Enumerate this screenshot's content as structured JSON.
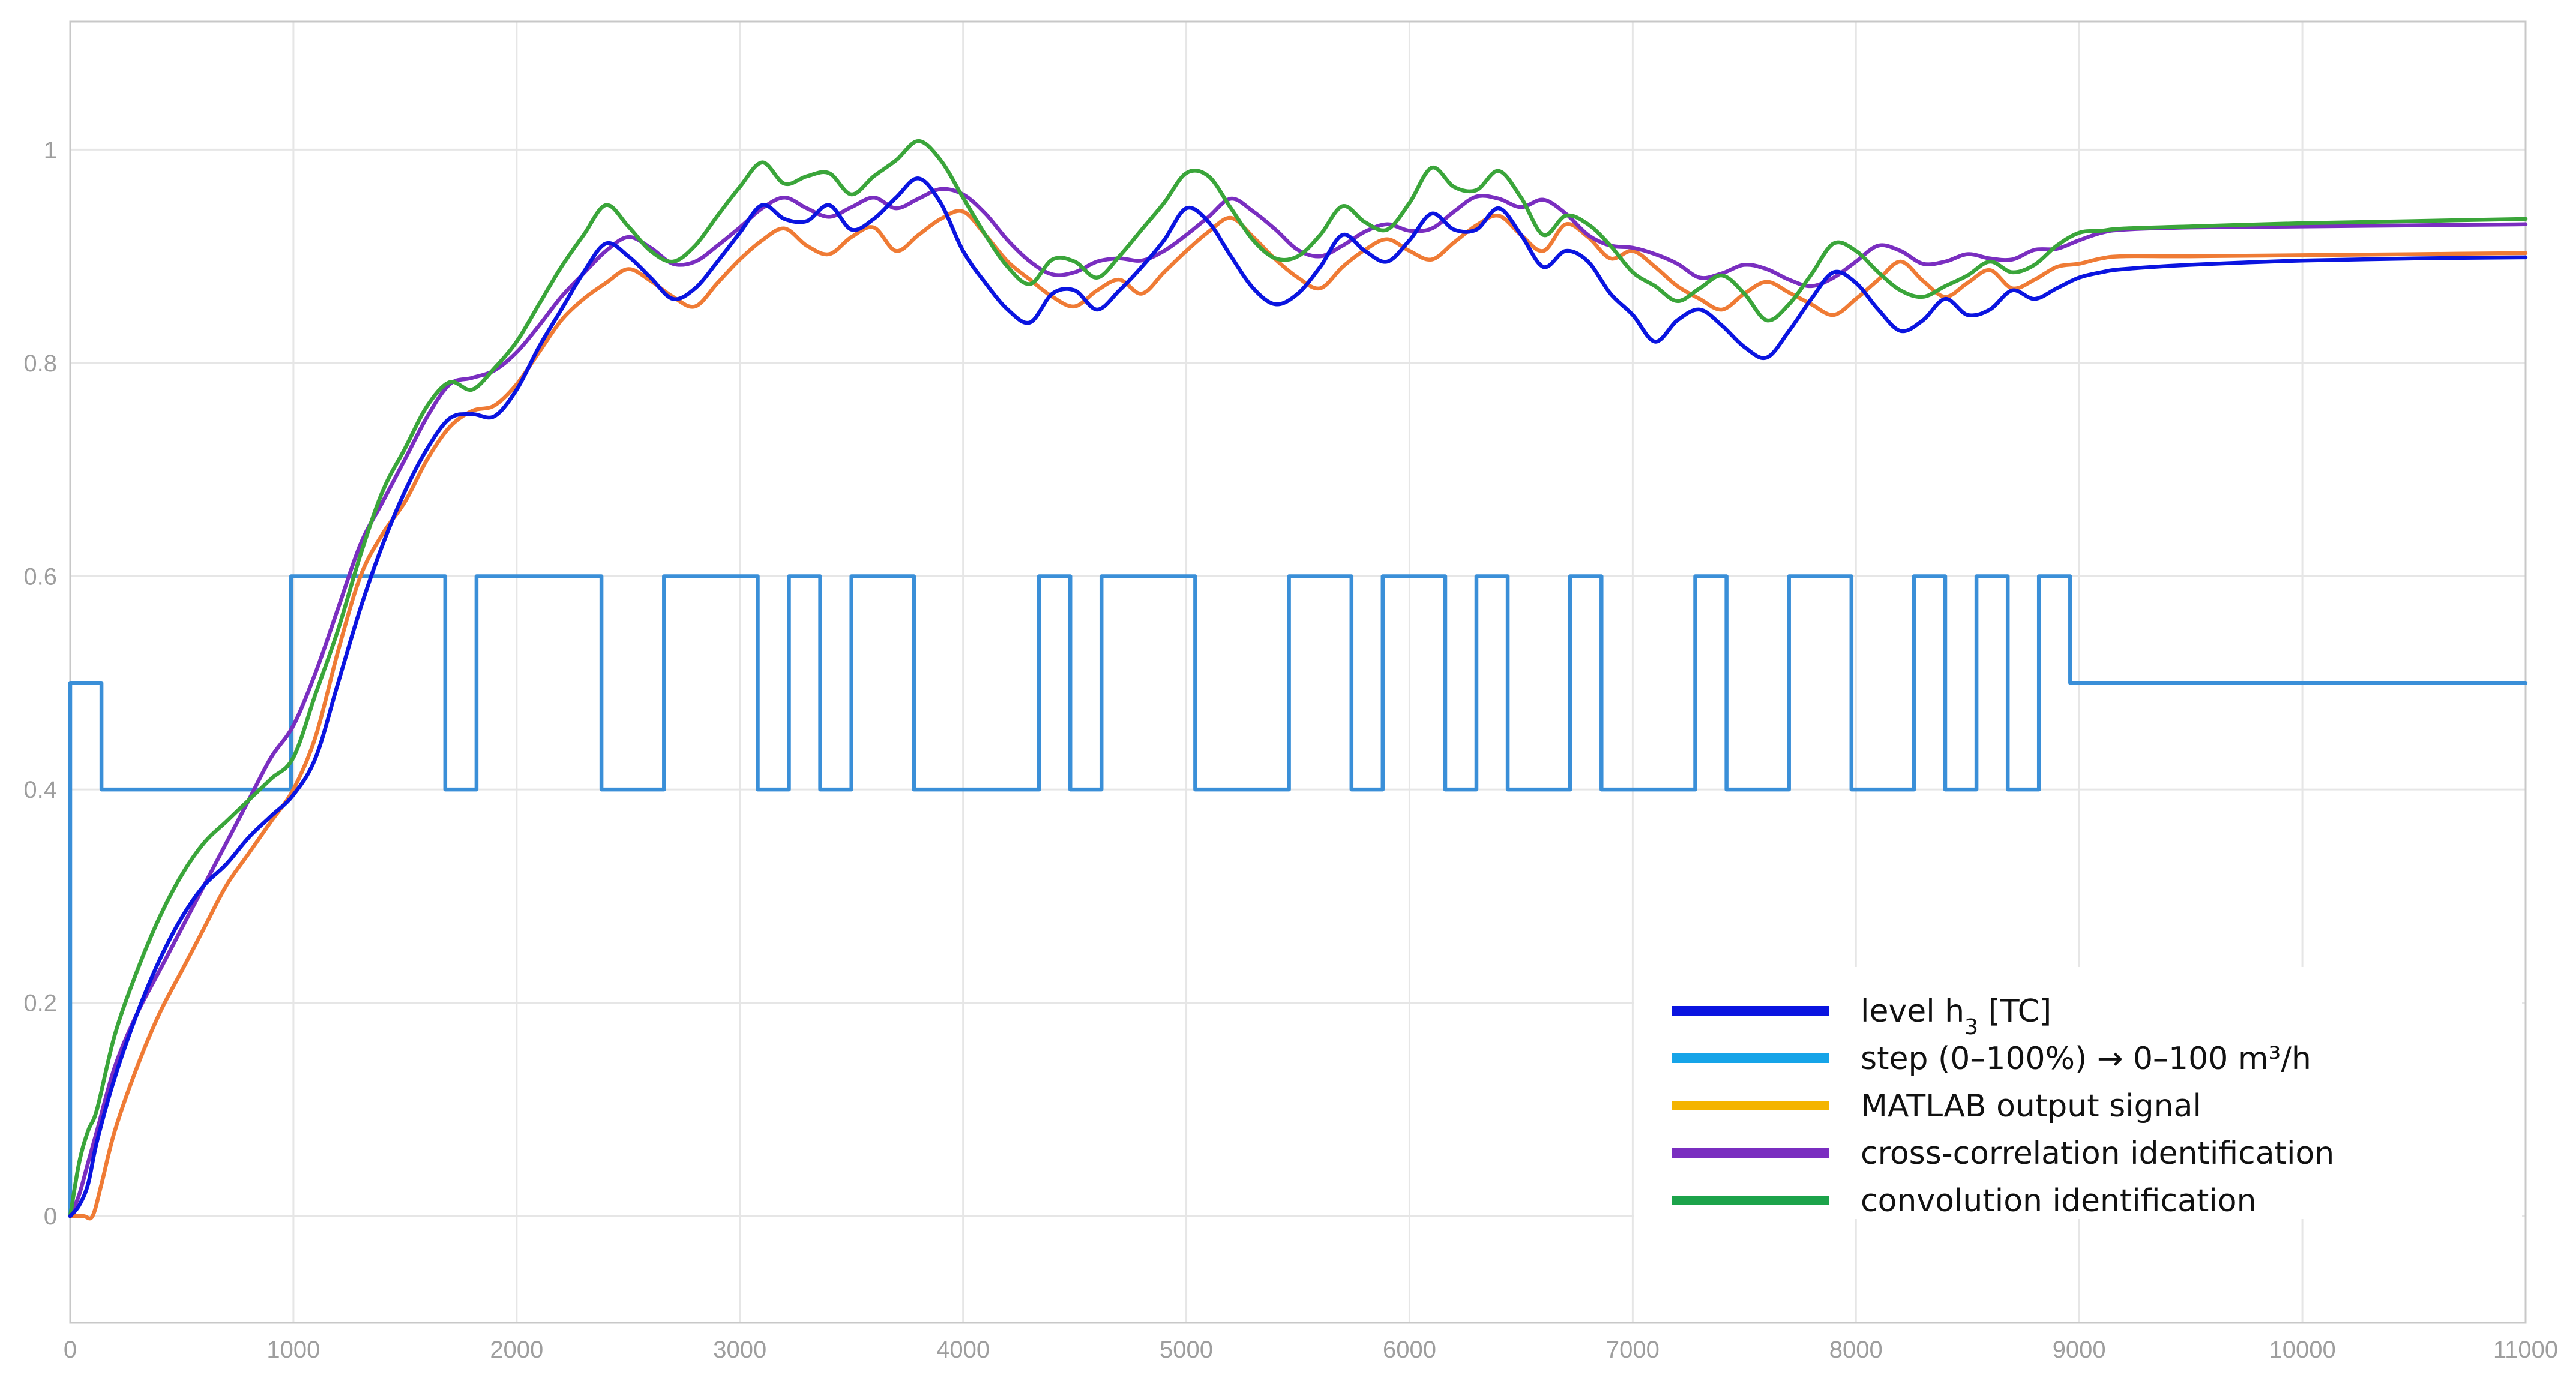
{
  "chart_data": {
    "type": "line",
    "title": "",
    "xlabel": "",
    "ylabel": "",
    "xlim": [
      0,
      11000
    ],
    "ylim": [
      -0.1,
      1.12
    ],
    "xticks": [
      0,
      1000,
      2000,
      3000,
      4000,
      5000,
      6000,
      7000,
      8000,
      9000,
      10000,
      11000
    ],
    "yticks": [
      0,
      0.2,
      0.4,
      0.6,
      0.8,
      1
    ],
    "xtick_labels": [
      "0",
      "1000",
      "2000",
      "3000",
      "4000",
      "5000",
      "6000",
      "7000",
      "8000",
      "9000",
      "10000",
      "11000"
    ],
    "ytick_labels": [
      "0",
      "0.2",
      "0.4",
      "0.6",
      "0.8",
      "1"
    ],
    "grid": true,
    "legend_position": "bottom-right",
    "series": [
      {
        "name": "step (0–100%) → 0–100 m³/h",
        "color": "#3a8fd8",
        "kind": "step",
        "x": [
          0,
          0,
          140,
          140,
          990,
          990,
          1680,
          1680,
          1820,
          1820,
          2380,
          2380,
          2660,
          2660,
          3080,
          3080,
          3220,
          3220,
          3360,
          3360,
          3500,
          3500,
          3780,
          3780,
          4340,
          4340,
          4480,
          4480,
          4620,
          4620,
          5040,
          5040,
          5460,
          5460,
          5740,
          5740,
          5880,
          5880,
          6160,
          6160,
          6300,
          6300,
          6440,
          6440,
          6720,
          6720,
          6860,
          6860,
          7280,
          7280,
          7420,
          7420,
          7700,
          7700,
          7980,
          7980,
          8260,
          8260,
          8400,
          8400,
          8540,
          8540,
          8680,
          8680,
          8820,
          8820,
          8960,
          8960,
          11000
        ],
        "y": [
          0,
          0.5,
          0.5,
          0.4,
          0.4,
          0.6,
          0.6,
          0.4,
          0.4,
          0.6,
          0.6,
          0.4,
          0.4,
          0.6,
          0.6,
          0.4,
          0.4,
          0.6,
          0.6,
          0.4,
          0.4,
          0.6,
          0.6,
          0.4,
          0.4,
          0.6,
          0.6,
          0.4,
          0.4,
          0.6,
          0.6,
          0.4,
          0.4,
          0.6,
          0.6,
          0.4,
          0.4,
          0.6,
          0.6,
          0.4,
          0.4,
          0.6,
          0.6,
          0.4,
          0.4,
          0.6,
          0.6,
          0.4,
          0.4,
          0.6,
          0.6,
          0.4,
          0.4,
          0.6,
          0.6,
          0.4,
          0.4,
          0.6,
          0.6,
          0.4,
          0.4,
          0.6,
          0.6,
          0.4,
          0.4,
          0.6,
          0.6,
          0.5,
          0.5
        ]
      },
      {
        "name": "MATLAB output signal",
        "color": "#ef7b35",
        "kind": "line",
        "x": [
          0,
          60,
          100,
          140,
          200,
          300,
          400,
          500,
          600,
          700,
          800,
          900,
          1000,
          1100,
          1200,
          1300,
          1400,
          1500,
          1600,
          1700,
          1800,
          1900,
          2000,
          2100,
          2200,
          2300,
          2400,
          2500,
          2600,
          2700,
          2800,
          2900,
          3000,
          3100,
          3200,
          3300,
          3400,
          3500,
          3600,
          3700,
          3800,
          3900,
          4000,
          4100,
          4200,
          4300,
          4400,
          4500,
          4600,
          4700,
          4800,
          4900,
          5000,
          5100,
          5200,
          5300,
          5400,
          5500,
          5600,
          5700,
          5800,
          5900,
          6000,
          6100,
          6200,
          6300,
          6400,
          6500,
          6600,
          6700,
          6800,
          6900,
          7000,
          7100,
          7200,
          7300,
          7400,
          7500,
          7600,
          7700,
          7800,
          7900,
          8000,
          8100,
          8200,
          8300,
          8400,
          8500,
          8600,
          8700,
          8800,
          8900,
          9000,
          9100,
          9200,
          9500,
          10000,
          10500,
          11000
        ],
        "y": [
          0,
          0,
          0.0,
          0.03,
          0.08,
          0.14,
          0.19,
          0.23,
          0.27,
          0.31,
          0.34,
          0.37,
          0.4,
          0.45,
          0.53,
          0.6,
          0.64,
          0.67,
          0.71,
          0.74,
          0.755,
          0.76,
          0.78,
          0.81,
          0.84,
          0.86,
          0.875,
          0.888,
          0.877,
          0.862,
          0.853,
          0.875,
          0.897,
          0.915,
          0.926,
          0.91,
          0.902,
          0.918,
          0.927,
          0.905,
          0.92,
          0.935,
          0.942,
          0.92,
          0.895,
          0.878,
          0.862,
          0.853,
          0.868,
          0.878,
          0.865,
          0.885,
          0.905,
          0.923,
          0.936,
          0.918,
          0.897,
          0.88,
          0.87,
          0.89,
          0.906,
          0.916,
          0.905,
          0.897,
          0.913,
          0.929,
          0.938,
          0.92,
          0.905,
          0.93,
          0.918,
          0.898,
          0.905,
          0.89,
          0.872,
          0.86,
          0.85,
          0.865,
          0.876,
          0.866,
          0.855,
          0.845,
          0.86,
          0.878,
          0.895,
          0.877,
          0.862,
          0.875,
          0.887,
          0.87,
          0.878,
          0.89,
          0.893,
          0.898,
          0.9,
          0.9,
          0.901,
          0.902,
          0.903
        ]
      },
      {
        "name": "cross-correlation identification",
        "color": "#7a2ec0",
        "kind": "line",
        "x": [
          0,
          40,
          80,
          120,
          200,
          300,
          400,
          500,
          600,
          700,
          800,
          900,
          1000,
          1100,
          1200,
          1300,
          1400,
          1500,
          1600,
          1700,
          1800,
          1900,
          2000,
          2100,
          2200,
          2300,
          2400,
          2500,
          2600,
          2700,
          2800,
          2900,
          3000,
          3100,
          3200,
          3300,
          3400,
          3500,
          3600,
          3700,
          3800,
          3900,
          4000,
          4100,
          4200,
          4300,
          4400,
          4500,
          4600,
          4700,
          4800,
          4900,
          5000,
          5100,
          5200,
          5300,
          5400,
          5500,
          5600,
          5700,
          5800,
          5900,
          6000,
          6100,
          6200,
          6300,
          6400,
          6500,
          6600,
          6700,
          6800,
          6900,
          7000,
          7100,
          7200,
          7300,
          7400,
          7500,
          7600,
          7700,
          7800,
          7900,
          8000,
          8100,
          8200,
          8300,
          8400,
          8500,
          8600,
          8700,
          8800,
          8900,
          9000,
          9100,
          9200,
          9500,
          10000,
          10500,
          11000
        ],
        "y": [
          0,
          0.02,
          0.05,
          0.08,
          0.14,
          0.19,
          0.23,
          0.27,
          0.31,
          0.35,
          0.39,
          0.43,
          0.46,
          0.51,
          0.57,
          0.63,
          0.67,
          0.71,
          0.75,
          0.78,
          0.786,
          0.793,
          0.81,
          0.835,
          0.862,
          0.884,
          0.905,
          0.918,
          0.908,
          0.893,
          0.895,
          0.91,
          0.927,
          0.945,
          0.955,
          0.945,
          0.937,
          0.946,
          0.955,
          0.945,
          0.954,
          0.963,
          0.958,
          0.94,
          0.915,
          0.895,
          0.883,
          0.885,
          0.895,
          0.898,
          0.896,
          0.905,
          0.92,
          0.937,
          0.954,
          0.942,
          0.925,
          0.906,
          0.9,
          0.91,
          0.923,
          0.93,
          0.924,
          0.926,
          0.942,
          0.956,
          0.954,
          0.946,
          0.953,
          0.94,
          0.92,
          0.91,
          0.908,
          0.902,
          0.893,
          0.88,
          0.884,
          0.892,
          0.888,
          0.878,
          0.872,
          0.88,
          0.895,
          0.91,
          0.905,
          0.893,
          0.895,
          0.902,
          0.898,
          0.897,
          0.906,
          0.907,
          0.915,
          0.922,
          0.925,
          0.927,
          0.928,
          0.929,
          0.93
        ]
      },
      {
        "name": "convolution identification",
        "color": "#3aa53a",
        "kind": "line",
        "x": [
          0,
          40,
          80,
          120,
          200,
          300,
          400,
          500,
          600,
          700,
          800,
          900,
          1000,
          1100,
          1200,
          1300,
          1400,
          1500,
          1600,
          1700,
          1800,
          1900,
          2000,
          2100,
          2200,
          2300,
          2400,
          2500,
          2600,
          2700,
          2800,
          2900,
          3000,
          3100,
          3200,
          3300,
          3400,
          3500,
          3600,
          3700,
          3800,
          3900,
          4000,
          4100,
          4200,
          4300,
          4400,
          4500,
          4600,
          4700,
          4800,
          4900,
          5000,
          5100,
          5200,
          5300,
          5400,
          5500,
          5600,
          5700,
          5800,
          5900,
          6000,
          6100,
          6200,
          6300,
          6400,
          6500,
          6600,
          6700,
          6800,
          6900,
          7000,
          7100,
          7200,
          7300,
          7400,
          7500,
          7600,
          7700,
          7800,
          7900,
          8000,
          8100,
          8200,
          8300,
          8400,
          8500,
          8600,
          8700,
          8800,
          8900,
          9000,
          9100,
          9200,
          9500,
          10000,
          10500,
          11000
        ],
        "y": [
          0,
          0.05,
          0.08,
          0.1,
          0.17,
          0.23,
          0.28,
          0.32,
          0.35,
          0.37,
          0.39,
          0.41,
          0.43,
          0.49,
          0.55,
          0.62,
          0.68,
          0.72,
          0.76,
          0.782,
          0.775,
          0.795,
          0.82,
          0.855,
          0.89,
          0.92,
          0.948,
          0.928,
          0.905,
          0.895,
          0.91,
          0.938,
          0.965,
          0.988,
          0.968,
          0.975,
          0.978,
          0.958,
          0.975,
          0.99,
          1.008,
          0.99,
          0.955,
          0.92,
          0.89,
          0.874,
          0.897,
          0.895,
          0.88,
          0.9,
          0.925,
          0.95,
          0.978,
          0.975,
          0.945,
          0.915,
          0.898,
          0.9,
          0.92,
          0.947,
          0.932,
          0.925,
          0.95,
          0.983,
          0.965,
          0.962,
          0.98,
          0.955,
          0.92,
          0.938,
          0.93,
          0.91,
          0.885,
          0.872,
          0.858,
          0.87,
          0.882,
          0.865,
          0.84,
          0.855,
          0.883,
          0.912,
          0.905,
          0.885,
          0.868,
          0.862,
          0.872,
          0.882,
          0.895,
          0.885,
          0.892,
          0.91,
          0.922,
          0.924,
          0.926,
          0.928,
          0.931,
          0.933,
          0.935
        ]
      },
      {
        "name": "level h_3 [TC]",
        "color": "#0a14e0",
        "kind": "line",
        "x": [
          0,
          40,
          80,
          120,
          200,
          300,
          400,
          500,
          600,
          700,
          800,
          900,
          1000,
          1100,
          1200,
          1300,
          1400,
          1500,
          1600,
          1700,
          1800,
          1900,
          2000,
          2100,
          2200,
          2300,
          2400,
          2500,
          2600,
          2700,
          2800,
          2900,
          3000,
          3100,
          3200,
          3300,
          3400,
          3500,
          3600,
          3700,
          3800,
          3900,
          4000,
          4100,
          4200,
          4300,
          4400,
          4500,
          4600,
          4700,
          4800,
          4900,
          5000,
          5100,
          5200,
          5300,
          5400,
          5500,
          5600,
          5700,
          5800,
          5900,
          6000,
          6100,
          6200,
          6300,
          6400,
          6500,
          6600,
          6700,
          6800,
          6900,
          7000,
          7100,
          7200,
          7300,
          7400,
          7500,
          7600,
          7700,
          7800,
          7900,
          8000,
          8100,
          8200,
          8300,
          8400,
          8500,
          8600,
          8700,
          8800,
          8900,
          9000,
          9100,
          9200,
          9500,
          10000,
          10500,
          11000
        ],
        "y": [
          0,
          0.01,
          0.03,
          0.07,
          0.13,
          0.19,
          0.24,
          0.28,
          0.31,
          0.33,
          0.355,
          0.375,
          0.395,
          0.43,
          0.5,
          0.57,
          0.63,
          0.68,
          0.72,
          0.748,
          0.752,
          0.75,
          0.775,
          0.815,
          0.85,
          0.885,
          0.912,
          0.9,
          0.88,
          0.86,
          0.87,
          0.895,
          0.922,
          0.948,
          0.935,
          0.933,
          0.948,
          0.925,
          0.935,
          0.955,
          0.973,
          0.95,
          0.905,
          0.875,
          0.85,
          0.838,
          0.865,
          0.868,
          0.85,
          0.868,
          0.89,
          0.915,
          0.945,
          0.932,
          0.9,
          0.87,
          0.855,
          0.865,
          0.89,
          0.92,
          0.905,
          0.895,
          0.915,
          0.94,
          0.925,
          0.925,
          0.945,
          0.92,
          0.89,
          0.905,
          0.895,
          0.865,
          0.845,
          0.82,
          0.84,
          0.85,
          0.835,
          0.815,
          0.805,
          0.83,
          0.86,
          0.885,
          0.875,
          0.85,
          0.83,
          0.84,
          0.86,
          0.845,
          0.85,
          0.868,
          0.86,
          0.87,
          0.88,
          0.885,
          0.888,
          0.892,
          0.896,
          0.898,
          0.899
        ]
      }
    ],
    "legend": [
      {
        "label": "level h",
        "sub": "3",
        "suffix": " [TC]",
        "color": "#0a14e0"
      },
      {
        "label": "step (0–100%) → 0–100 m³/h",
        "color": "#16a4e8"
      },
      {
        "label": "MATLAB output signal",
        "color": "#f4b400"
      },
      {
        "label": "cross-correlation identification",
        "color": "#7a2ec0"
      },
      {
        "label": "convolution identification",
        "color": "#1ca34a"
      }
    ]
  }
}
